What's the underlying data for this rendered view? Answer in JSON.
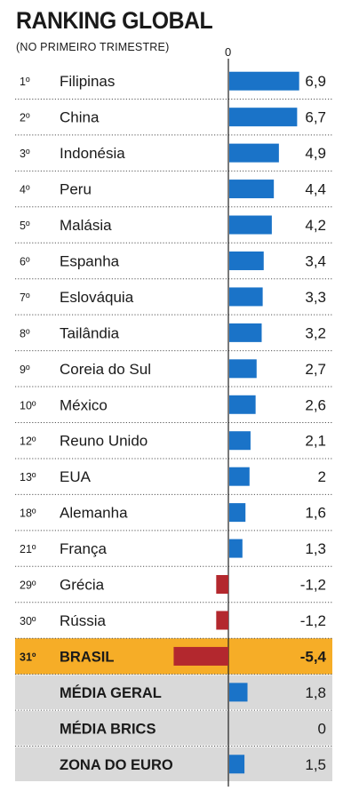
{
  "title": "RANKING GLOBAL",
  "subtitle": "(NO PRIMEIRO TRIMESTRE)",
  "zero_label": "0",
  "colors": {
    "positive": "#1a73c8",
    "negative": "#b3282e",
    "highlight_bg": "#f6ad27",
    "summary_bg": "#d9d9d9",
    "divider": "#555555"
  },
  "chart_data": {
    "type": "bar",
    "orientation": "horizontal",
    "title": "RANKING GLOBAL",
    "subtitle": "(NO PRIMEIRO TRIMESTRE)",
    "zero_label": "0",
    "rows": [
      {
        "rank": "1º",
        "label": "Filipinas",
        "value": 6.9,
        "value_label": "6,9",
        "style": "normal"
      },
      {
        "rank": "2º",
        "label": "China",
        "value": 6.7,
        "value_label": "6,7",
        "style": "normal"
      },
      {
        "rank": "3º",
        "label": "Indonésia",
        "value": 4.9,
        "value_label": "4,9",
        "style": "normal"
      },
      {
        "rank": "4º",
        "label": "Peru",
        "value": 4.4,
        "value_label": "4,4",
        "style": "normal"
      },
      {
        "rank": "5º",
        "label": "Malásia",
        "value": 4.2,
        "value_label": "4,2",
        "style": "normal"
      },
      {
        "rank": "6º",
        "label": "Espanha",
        "value": 3.4,
        "value_label": "3,4",
        "style": "normal"
      },
      {
        "rank": "7º",
        "label": "Eslováquia",
        "value": 3.3,
        "value_label": "3,3",
        "style": "normal"
      },
      {
        "rank": "8º",
        "label": "Tailândia",
        "value": 3.2,
        "value_label": "3,2",
        "style": "normal"
      },
      {
        "rank": "9º",
        "label": "Coreia do Sul",
        "value": 2.7,
        "value_label": "2,7",
        "style": "normal"
      },
      {
        "rank": "10º",
        "label": "México",
        "value": 2.6,
        "value_label": "2,6",
        "style": "normal"
      },
      {
        "rank": "12º",
        "label": "Reuno Unido",
        "value": 2.1,
        "value_label": "2,1",
        "style": "normal"
      },
      {
        "rank": "13º",
        "label": "EUA",
        "value": 2,
        "value_label": "2",
        "style": "normal"
      },
      {
        "rank": "18º",
        "label": "Alemanha",
        "value": 1.6,
        "value_label": "1,6",
        "style": "normal"
      },
      {
        "rank": "21º",
        "label": "França",
        "value": 1.3,
        "value_label": "1,3",
        "style": "normal"
      },
      {
        "rank": "29º",
        "label": "Grécia",
        "value": -1.2,
        "value_label": "-1,2",
        "style": "normal"
      },
      {
        "rank": "30º",
        "label": "Rússia",
        "value": -1.2,
        "value_label": "-1,2",
        "style": "normal"
      },
      {
        "rank": "31º",
        "label": "BRASIL",
        "value": -5.4,
        "value_label": "-5,4",
        "style": "highlight"
      },
      {
        "rank": "",
        "label": "MÉDIA GERAL",
        "value": 1.8,
        "value_label": "1,8",
        "style": "summary"
      },
      {
        "rank": "",
        "label": "MÉDIA BRICS",
        "value": 0,
        "value_label": "0",
        "style": "summary"
      },
      {
        "rank": "",
        "label": "ZONA DO EURO",
        "value": 1.5,
        "value_label": "1,5",
        "style": "summary"
      }
    ]
  }
}
